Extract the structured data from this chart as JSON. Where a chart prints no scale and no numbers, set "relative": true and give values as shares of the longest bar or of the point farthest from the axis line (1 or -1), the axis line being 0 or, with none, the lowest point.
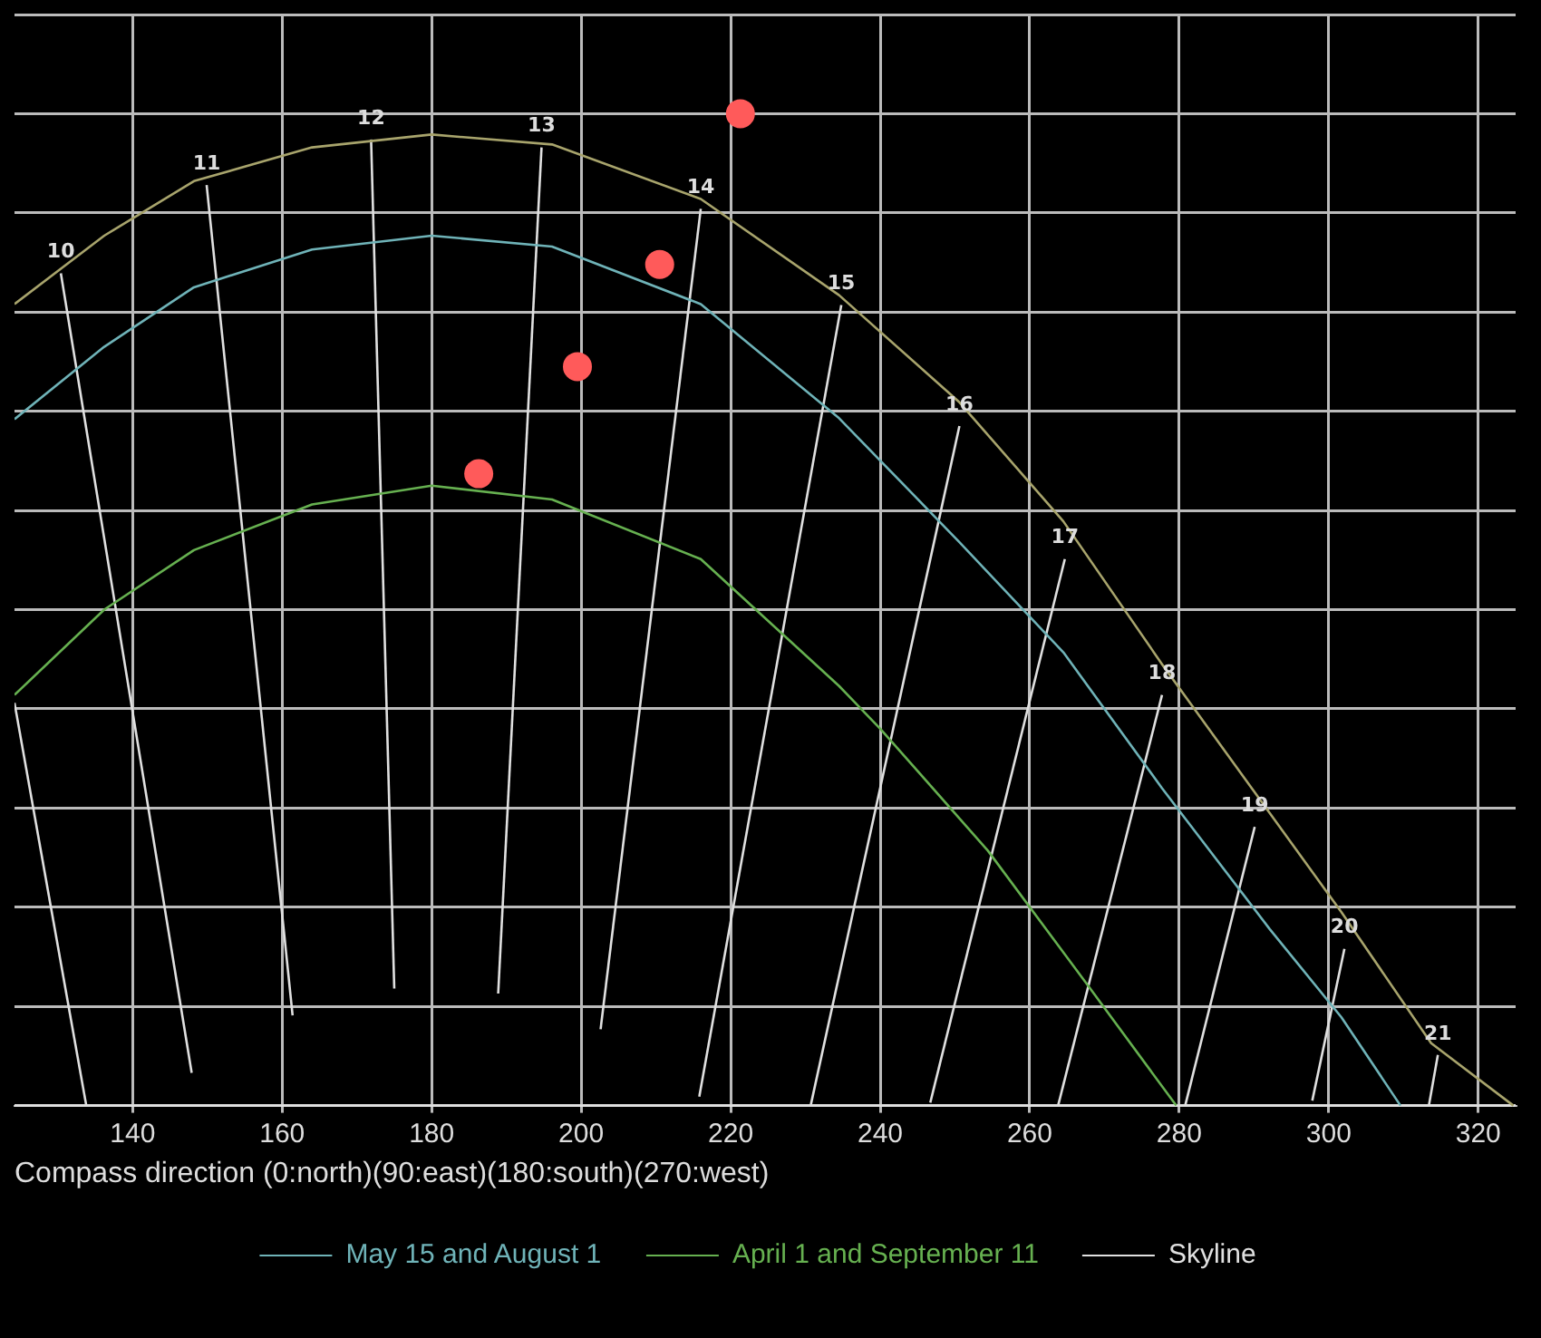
{
  "chart_data": {
    "type": "line",
    "xlabel": "Compass direction (0:north)(90:east)(180:south)(270:west)",
    "relative": true,
    "xlim": [
      124.2,
      325
    ],
    "xticks": [
      140,
      160,
      180,
      200,
      220,
      240,
      260,
      280,
      300,
      320
    ],
    "grid": true,
    "legend": "bottom",
    "tick_labels": "x",
    "marker": "none",
    "line_style": "solid",
    "series": [
      {
        "color": "#a8a46c",
        "x": [
          124.2,
          136.2,
          148.2,
          164,
          180,
          196.1,
          216,
          234.5,
          250.6,
          264.5,
          277.7,
          289.7,
          301.7,
          313.7,
          324.7
        ],
        "values": [
          0.808,
          0.877,
          0.932,
          0.966,
          0.979,
          0.969,
          0.914,
          0.817,
          0.709,
          0.589,
          0.445,
          0.32,
          0.195,
          0.063,
          0
        ]
      },
      {
        "name": "May 15 and August 1",
        "color": "#6fb3b8",
        "x": [
          124.2,
          136.2,
          148.2,
          164,
          180,
          196.1,
          216,
          234.5,
          250.6,
          264.5,
          277.7,
          292.1,
          301.7,
          309.6
        ],
        "values": [
          0.692,
          0.765,
          0.825,
          0.863,
          0.877,
          0.866,
          0.808,
          0.693,
          0.568,
          0.457,
          0.32,
          0.178,
          0.089,
          0
        ]
      },
      {
        "name": "April 1 and September 11",
        "color": "#66b050",
        "x": [
          124.2,
          136.2,
          148.2,
          164,
          180,
          196.1,
          216,
          234.5,
          240,
          254.4,
          267.6,
          279.6
        ],
        "values": [
          0.414,
          0.5,
          0.56,
          0.606,
          0.625,
          0.611,
          0.551,
          0.423,
          0.38,
          0.257,
          0.123,
          0
        ]
      },
      {
        "name": "Skyline",
        "color": "#e0e0e0",
        "x": [
          124.2,
          325
        ],
        "values": [
          0,
          0
        ]
      },
      {
        "color": "#e0e0e0",
        "x": [
          124.2,
          133.8
        ],
        "values": [
          0.406,
          0
        ]
      },
      {
        "color": "#e0e0e0",
        "x": [
          130.4,
          147.9
        ],
        "values": [
          0.839,
          0.033
        ]
      },
      {
        "color": "#e0e0e0",
        "x": [
          149.9,
          161.4
        ],
        "values": [
          0.928,
          0.091
        ]
      },
      {
        "color": "#e0e0e0",
        "x": [
          171.9,
          175.0
        ],
        "values": [
          0.974,
          0.118
        ]
      },
      {
        "color": "#e0e0e0",
        "x": [
          194.7,
          188.9
        ],
        "values": [
          0.966,
          0.113
        ]
      },
      {
        "color": "#e0e0e0",
        "x": [
          216.0,
          202.6
        ],
        "values": [
          0.904,
          0.077
        ]
      },
      {
        "color": "#e0e0e0",
        "x": [
          234.8,
          215.8
        ],
        "values": [
          0.807,
          0.009
        ]
      },
      {
        "color": "#e0e0e0",
        "x": [
          250.6,
          230.7
        ],
        "values": [
          0.685,
          0
        ]
      },
      {
        "color": "#e0e0e0",
        "x": [
          264.7,
          246.7
        ],
        "values": [
          0.551,
          0.003
        ]
      },
      {
        "color": "#e0e0e0",
        "x": [
          277.7,
          263.8
        ],
        "values": [
          0.414,
          0
        ]
      },
      {
        "color": "#e0e0e0",
        "x": [
          290.1,
          280.8
        ],
        "values": [
          0.281,
          0
        ]
      },
      {
        "color": "#e0e0e0",
        "x": [
          302.1,
          297.8
        ],
        "values": [
          0.158,
          0.005
        ]
      },
      {
        "color": "#e0e0e0",
        "x": [
          314.6,
          313.4
        ],
        "values": [
          0.051,
          0
        ]
      },
      {
        "type": "scatter",
        "marker": "circle",
        "color": "#ff5a5a",
        "x": [
          186.3,
          199.5,
          210.5,
          221.3
        ],
        "values": [
          0.637,
          0.745,
          0.848,
          1.0
        ]
      }
    ],
    "annotations": [
      {
        "text": "10",
        "x": 130.4,
        "y": 0.839
      },
      {
        "text": "11",
        "x": 149.9,
        "y": 0.928
      },
      {
        "text": "12",
        "x": 171.9,
        "y": 0.974
      },
      {
        "text": "13",
        "x": 194.7,
        "y": 0.966
      },
      {
        "text": "14",
        "x": 216.0,
        "y": 0.904
      },
      {
        "text": "15",
        "x": 234.8,
        "y": 0.807
      },
      {
        "text": "16",
        "x": 250.6,
        "y": 0.685
      },
      {
        "text": "17",
        "x": 264.7,
        "y": 0.551
      },
      {
        "text": "18",
        "x": 277.7,
        "y": 0.414
      },
      {
        "text": "19",
        "x": 290.1,
        "y": 0.281
      },
      {
        "text": "20",
        "x": 302.1,
        "y": 0.158
      },
      {
        "text": "21",
        "x": 314.6,
        "y": 0.051
      }
    ]
  }
}
